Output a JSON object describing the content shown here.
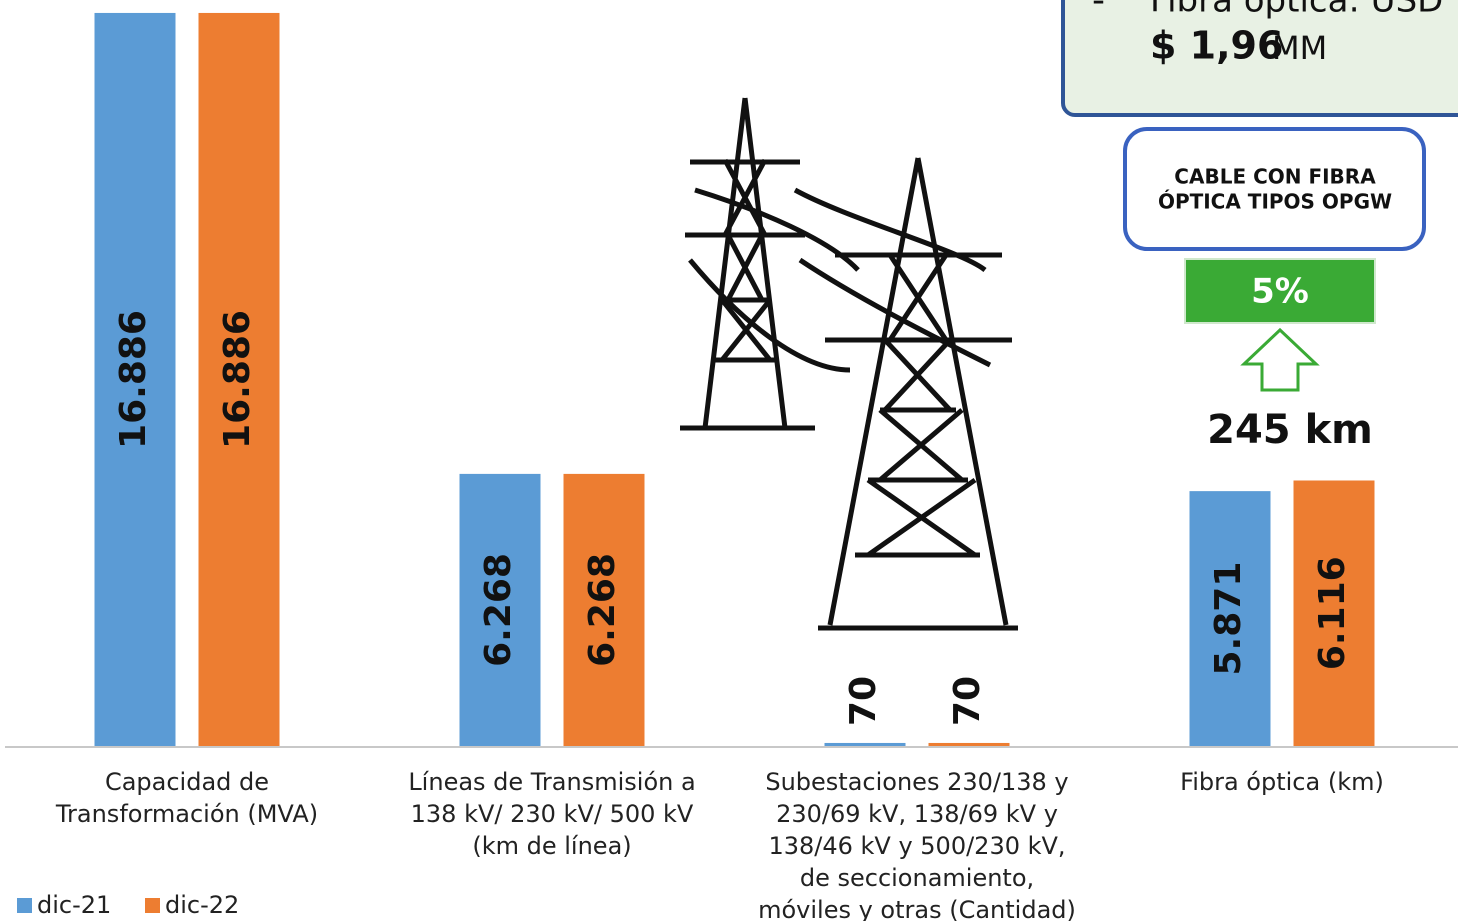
{
  "chart_data": {
    "type": "bar",
    "categories": [
      [
        "Capacidad de",
        "Transformación (MVA)"
      ],
      [
        "Líneas de Transmisión a",
        "138 kV/ 230 kV/ 500 kV",
        "(km de línea)"
      ],
      [
        "Subestaciones 230/138 y",
        "230/69 kV, 138/69 kV y",
        "138/46 kV y 500/230 kV,",
        "de seccionamiento,",
        "móviles y otras (Cantidad)"
      ],
      [
        "Fibra óptica (km)"
      ]
    ],
    "series": [
      {
        "name": "dic-21",
        "color": "#5b9bd5",
        "values": [
          16886,
          6268,
          70,
          5871
        ],
        "value_labels": [
          "16.886",
          "6.268",
          "70",
          "5.871"
        ]
      },
      {
        "name": "dic-22",
        "color": "#ed7d31",
        "values": [
          16886,
          6268,
          70,
          6116
        ],
        "value_labels": [
          "16.886",
          "6.268",
          "70",
          "6.116"
        ]
      }
    ],
    "ylim": [
      0,
      17000
    ],
    "legend": "bottom-left",
    "annotations": {
      "top_box_dash": "-",
      "top_box_text": "Fibra óptica: USD",
      "top_box_amount": "$ 1,96",
      "top_box_unit": "MM",
      "cable_box": [
        "CABLE CON FIBRA",
        "ÓPTICA TIPOS OPGW"
      ],
      "growth": "5%",
      "increase": "245 km"
    }
  }
}
